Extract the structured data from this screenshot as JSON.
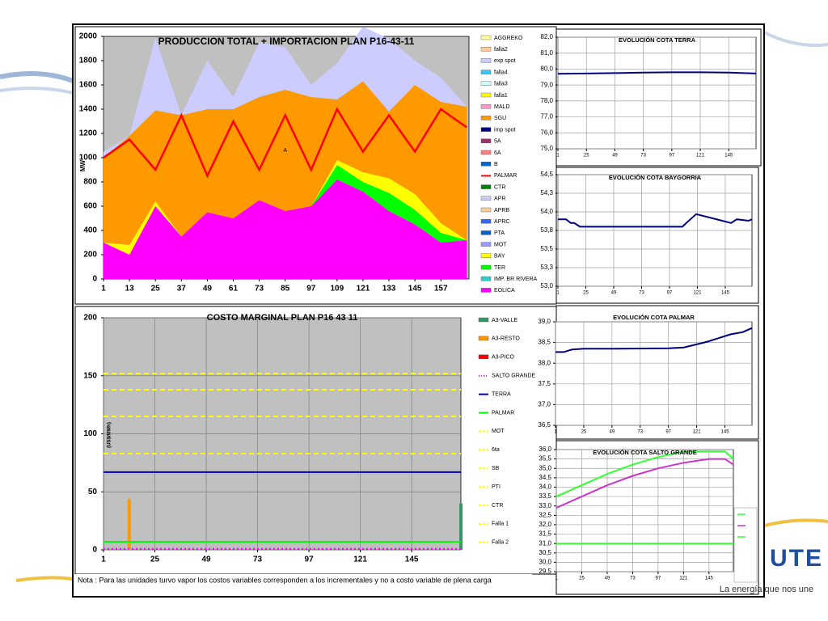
{
  "logo": {
    "name": "UTE",
    "slogan": "La energía que nos une"
  },
  "note": "Nota : Para las unidades turvo vapor los costos variables corresponden a los incrementales y no a costo variable de plena carga",
  "chart_data": [
    {
      "type": "area",
      "title": "PRODUCCION TOTAL + IMPORTACION PLAN   P16-43-11",
      "ylabel": "MW",
      "background": "#c0c0c0",
      "grid": false,
      "x": [
        1,
        13,
        25,
        37,
        49,
        61,
        73,
        85,
        97,
        109,
        121,
        133,
        145,
        157,
        169
      ],
      "xlim": [
        1,
        170
      ],
      "xticks": [
        1,
        13,
        25,
        37,
        49,
        61,
        73,
        85,
        97,
        109,
        121,
        133,
        145,
        157
      ],
      "ylim": [
        0,
        2000
      ],
      "yticks": [
        0,
        200,
        400,
        600,
        800,
        1000,
        1200,
        1400,
        1600,
        1800,
        2000
      ],
      "annotations": [
        {
          "text": "A",
          "x": 85,
          "y": 1060
        }
      ],
      "series": [
        {
          "name": "AGGREKO",
          "color": "#ffff99",
          "values": [
            0,
            0,
            0,
            0,
            0,
            0,
            0,
            0,
            0,
            0,
            0,
            0,
            0,
            0,
            0
          ]
        },
        {
          "name": "falla2",
          "color": "#ffcc99",
          "values": [
            0,
            0,
            0,
            0,
            0,
            0,
            0,
            0,
            0,
            0,
            0,
            0,
            0,
            0,
            0
          ]
        },
        {
          "name": "exp spot",
          "color": "#ccccff",
          "values": [
            50,
            0,
            600,
            0,
            400,
            100,
            450,
            350,
            100,
            300,
            450,
            600,
            200,
            200,
            0
          ]
        },
        {
          "name": "falla4",
          "color": "#33ccff",
          "values": [
            0,
            0,
            0,
            0,
            0,
            0,
            0,
            0,
            0,
            0,
            0,
            0,
            0,
            0,
            0
          ]
        },
        {
          "name": "falla3",
          "color": "#ccffff",
          "values": [
            0,
            0,
            0,
            0,
            0,
            0,
            0,
            0,
            0,
            0,
            0,
            0,
            0,
            0,
            0
          ]
        },
        {
          "name": "falla1",
          "color": "#ffff00",
          "values": [
            0,
            0,
            0,
            0,
            0,
            0,
            0,
            0,
            0,
            0,
            0,
            0,
            0,
            0,
            0
          ]
        },
        {
          "name": "MALD",
          "color": "#ff99cc",
          "values": [
            0,
            0,
            0,
            0,
            0,
            0,
            0,
            0,
            0,
            0,
            0,
            0,
            0,
            0,
            0
          ]
        },
        {
          "name": "SGU",
          "color": "#ff9900",
          "values": [
            700,
            900,
            750,
            1000,
            850,
            900,
            850,
            1000,
            900,
            500,
            750,
            550,
            900,
            1000,
            1100
          ]
        },
        {
          "name": "imp spot",
          "color": "#000080",
          "values": [
            0,
            0,
            0,
            0,
            0,
            0,
            0,
            0,
            0,
            0,
            0,
            0,
            0,
            0,
            0
          ]
        },
        {
          "name": "5A",
          "color": "#993366",
          "values": [
            0,
            0,
            0,
            0,
            0,
            0,
            0,
            0,
            0,
            0,
            0,
            0,
            0,
            0,
            0
          ]
        },
        {
          "name": "6A",
          "color": "#ff8080",
          "values": [
            0,
            0,
            0,
            0,
            0,
            0,
            0,
            0,
            0,
            0,
            0,
            0,
            0,
            0,
            0
          ]
        },
        {
          "name": "B",
          "color": "#0066cc",
          "values": [
            0,
            0,
            0,
            0,
            0,
            0,
            0,
            0,
            0,
            0,
            0,
            0,
            0,
            0,
            0
          ]
        },
        {
          "name": "PALMAR",
          "color": "#ff0000",
          "style": "line",
          "values": [
            1000,
            1150,
            900,
            1350,
            850,
            1300,
            900,
            1350,
            900,
            1400,
            1050,
            1350,
            1050,
            1400,
            1250
          ]
        },
        {
          "name": "CTR",
          "color": "#008000",
          "values": [
            0,
            0,
            0,
            0,
            0,
            0,
            0,
            0,
            0,
            0,
            0,
            0,
            0,
            0,
            0
          ]
        },
        {
          "name": "APR",
          "color": "#ccccff",
          "values": [
            0,
            0,
            0,
            0,
            0,
            0,
            0,
            0,
            0,
            0,
            0,
            0,
            0,
            0,
            0
          ]
        },
        {
          "name": "APRB",
          "color": "#ffcc99",
          "values": [
            0,
            0,
            0,
            0,
            0,
            0,
            0,
            0,
            0,
            0,
            0,
            0,
            0,
            0,
            0
          ]
        },
        {
          "name": "APRC",
          "color": "#3366ff",
          "values": [
            0,
            0,
            0,
            0,
            0,
            0,
            0,
            0,
            0,
            0,
            0,
            0,
            0,
            0,
            0
          ]
        },
        {
          "name": "PTA",
          "color": "#0066cc",
          "values": [
            0,
            0,
            0,
            0,
            0,
            0,
            0,
            0,
            0,
            0,
            0,
            0,
            0,
            0,
            0
          ]
        },
        {
          "name": "MOT",
          "color": "#9999ff",
          "values": [
            0,
            0,
            0,
            0,
            0,
            0,
            0,
            0,
            0,
            0,
            0,
            0,
            0,
            0,
            0
          ]
        },
        {
          "name": "BAY",
          "color": "#ffff00",
          "values": [
            0,
            80,
            40,
            0,
            0,
            0,
            0,
            0,
            0,
            40,
            80,
            120,
            130,
            80,
            0
          ]
        },
        {
          "name": "TER",
          "color": "#00ff00",
          "values": [
            0,
            0,
            0,
            0,
            0,
            0,
            0,
            0,
            0,
            120,
            80,
            150,
            120,
            80,
            0
          ]
        },
        {
          "name": "IMP. BR RIVERA",
          "color": "#33cccc",
          "values": [
            0,
            0,
            0,
            0,
            0,
            0,
            0,
            0,
            0,
            0,
            0,
            0,
            0,
            0,
            0
          ]
        },
        {
          "name": "EOLICA",
          "color": "#ff00ff",
          "values": [
            300,
            200,
            600,
            350,
            550,
            500,
            650,
            560,
            600,
            820,
            720,
            560,
            450,
            300,
            320
          ]
        }
      ]
    },
    {
      "type": "line",
      "title": "COSTO MARGINAL PLAN  P16 43 11",
      "ylabel": "(US$/MWh)",
      "background": "#c0c0c0",
      "grid": true,
      "grid_color": "#808080",
      "x": [
        1,
        13,
        168
      ],
      "xlim": [
        1,
        168
      ],
      "xticks": [
        1,
        25,
        49,
        73,
        97,
        121,
        145
      ],
      "ylim": [
        0,
        200
      ],
      "yticks": [
        0,
        50,
        100,
        150,
        200
      ],
      "series": [
        {
          "name": "A3-VALLE",
          "color": "#339966",
          "style": "bar",
          "values": [
            null,
            null,
            40
          ]
        },
        {
          "name": "A3-RESTO",
          "color": "#ff9900",
          "style": "bar",
          "values": [
            null,
            44,
            null
          ]
        },
        {
          "name": "A3-PICO",
          "color": "#ff0000",
          "style": "bar",
          "values": [
            null,
            null,
            null
          ]
        },
        {
          "name": "SALTO GRANDE",
          "color": "#ff00ff",
          "style": "dotted",
          "values": [
            1,
            1,
            1
          ]
        },
        {
          "name": "TERRA",
          "color": "#0000cc",
          "style": "line",
          "values": [
            67,
            67,
            67
          ]
        },
        {
          "name": "PALMAR",
          "color": "#00ff00",
          "style": "line",
          "values": [
            7,
            7,
            7
          ]
        },
        {
          "name": "MOT",
          "color": "#ffff00",
          "style": "dashed",
          "values": [
            152,
            152,
            152
          ]
        },
        {
          "name": "6ta",
          "color": "#ffff00",
          "style": "dashed",
          "values": [
            138,
            138,
            138
          ]
        },
        {
          "name": "SB",
          "color": "#ffff00",
          "style": "dashed",
          "values": [
            115,
            115,
            115
          ]
        },
        {
          "name": "PTI",
          "color": "#ffff00",
          "style": "dashed",
          "values": [
            83,
            83,
            83
          ]
        },
        {
          "name": "CTR",
          "color": "#ffff00",
          "style": "dashed",
          "values": [
            null,
            null,
            null
          ]
        },
        {
          "name": "Falla 1",
          "color": "#ffff00",
          "style": "dashed",
          "values": [
            null,
            null,
            null
          ]
        },
        {
          "name": "Falla 2",
          "color": "#ffff00",
          "style": "dashed",
          "values": [
            null,
            null,
            null
          ]
        }
      ]
    },
    {
      "type": "line",
      "title": "EVOLUCIÓN COTA TERRA",
      "background": "#ffffff",
      "grid": true,
      "grid_color": "#a0a0a0",
      "x": [
        1,
        25,
        49,
        73,
        97,
        121,
        145,
        168
      ],
      "xlim": [
        1,
        168
      ],
      "xticks": [
        1,
        25,
        49,
        73,
        97,
        121,
        145
      ],
      "ylim": [
        75,
        82
      ],
      "yticks": [
        {
          "value": 75,
          "label": "75,0"
        },
        {
          "value": 76,
          "label": "76,0"
        },
        {
          "value": 77,
          "label": "77,0"
        },
        {
          "value": 78,
          "label": "78,0"
        },
        {
          "value": 79,
          "label": "79,0"
        },
        {
          "value": 80,
          "label": "80,0"
        },
        {
          "value": 81,
          "label": "81,0"
        },
        {
          "value": 82,
          "label": "82,0"
        }
      ],
      "series": [
        {
          "color": "#000080",
          "style": "line",
          "values": [
            79.7,
            79.72,
            79.75,
            79.78,
            79.8,
            79.8,
            79.78,
            79.72
          ]
        }
      ]
    },
    {
      "type": "line",
      "title": "EVOLUCIÓN COTA BAYGORRIA",
      "background": "#ffffff",
      "grid": true,
      "grid_color": "#a0a0a0",
      "x": [
        1,
        8,
        12,
        15,
        20,
        49,
        97,
        108,
        115,
        120,
        150,
        155,
        165,
        168
      ],
      "xlim": [
        1,
        168
      ],
      "xticks": [
        1,
        25,
        49,
        73,
        97,
        121,
        145
      ],
      "ylim": [
        53,
        54.5
      ],
      "yticks": [
        {
          "value": 53,
          "label": "53,0"
        },
        {
          "value": 53.25,
          "label": "53,3"
        },
        {
          "value": 53.5,
          "label": "53,5"
        },
        {
          "value": 53.75,
          "label": "53,8"
        },
        {
          "value": 54,
          "label": "54,0"
        },
        {
          "value": 54.25,
          "label": "54,3"
        },
        {
          "value": 54.5,
          "label": "54,5"
        }
      ],
      "series": [
        {
          "color": "#000080",
          "style": "line",
          "values": [
            53.9,
            53.9,
            53.85,
            53.85,
            53.8,
            53.8,
            53.8,
            53.8,
            53.9,
            53.97,
            53.85,
            53.9,
            53.88,
            53.9
          ]
        }
      ]
    },
    {
      "type": "line",
      "title": "EVOLUCIÓN COTA PALMAR",
      "background": "#ffffff",
      "grid": true,
      "grid_color": "#a0a0a0",
      "x": [
        1,
        8,
        15,
        25,
        49,
        97,
        110,
        130,
        150,
        160,
        168
      ],
      "xlim": [
        1,
        168
      ],
      "xticks": [
        1,
        25,
        49,
        73,
        97,
        121,
        145
      ],
      "ylim": [
        36.5,
        39
      ],
      "yticks": [
        {
          "value": 36.5,
          "label": "36,5"
        },
        {
          "value": 37,
          "label": "37,0"
        },
        {
          "value": 37.5,
          "label": "37,5"
        },
        {
          "value": 38,
          "label": "38,0"
        },
        {
          "value": 38.5,
          "label": "38,5"
        },
        {
          "value": 39,
          "label": "39,0"
        }
      ],
      "series": [
        {
          "color": "#000080",
          "style": "line",
          "values": [
            38.27,
            38.27,
            38.33,
            38.35,
            38.35,
            38.36,
            38.38,
            38.52,
            38.7,
            38.75,
            38.85
          ]
        }
      ]
    },
    {
      "type": "line",
      "title": "EVOLUCIÓN COTA SALTO GRANDE",
      "background": "#ffffff",
      "grid": true,
      "grid_color": "#a0a0a0",
      "x": [
        1,
        25,
        49,
        73,
        97,
        121,
        145,
        160,
        168
      ],
      "xlim": [
        1,
        168
      ],
      "xticks": [
        1,
        25,
        49,
        73,
        97,
        121,
        145
      ],
      "ylim": [
        29.5,
        36
      ],
      "yticks": [
        {
          "value": 29.5,
          "label": "29,5"
        },
        {
          "value": 30,
          "label": "30,0"
        },
        {
          "value": 30.5,
          "label": "30,5"
        },
        {
          "value": 31,
          "label": "31,0"
        },
        {
          "value": 31.5,
          "label": "31,5"
        },
        {
          "value": 32,
          "label": "32,0"
        },
        {
          "value": 32.5,
          "label": "32,5"
        },
        {
          "value": 33,
          "label": "33,0"
        },
        {
          "value": 33.5,
          "label": "33,5"
        },
        {
          "value": 34,
          "label": "34,0"
        },
        {
          "value": 34.5,
          "label": "34,5"
        },
        {
          "value": 35,
          "label": "35,0"
        },
        {
          "value": 35.5,
          "label": "35,5"
        },
        {
          "value": 36,
          "label": "36,0"
        }
      ],
      "series": [
        {
          "color": "#33ff33",
          "style": "line",
          "values": [
            33.5,
            34.1,
            34.7,
            35.2,
            35.6,
            35.9,
            35.9,
            35.9,
            35.5
          ]
        },
        {
          "color": "#cc33cc",
          "style": "line",
          "values": [
            32.9,
            33.5,
            34.1,
            34.6,
            35.0,
            35.3,
            35.5,
            35.5,
            35.2
          ]
        },
        {
          "color": "#33ff33",
          "style": "line",
          "values": [
            31,
            31,
            31,
            31,
            31,
            31,
            31,
            31,
            31
          ]
        }
      ]
    }
  ]
}
